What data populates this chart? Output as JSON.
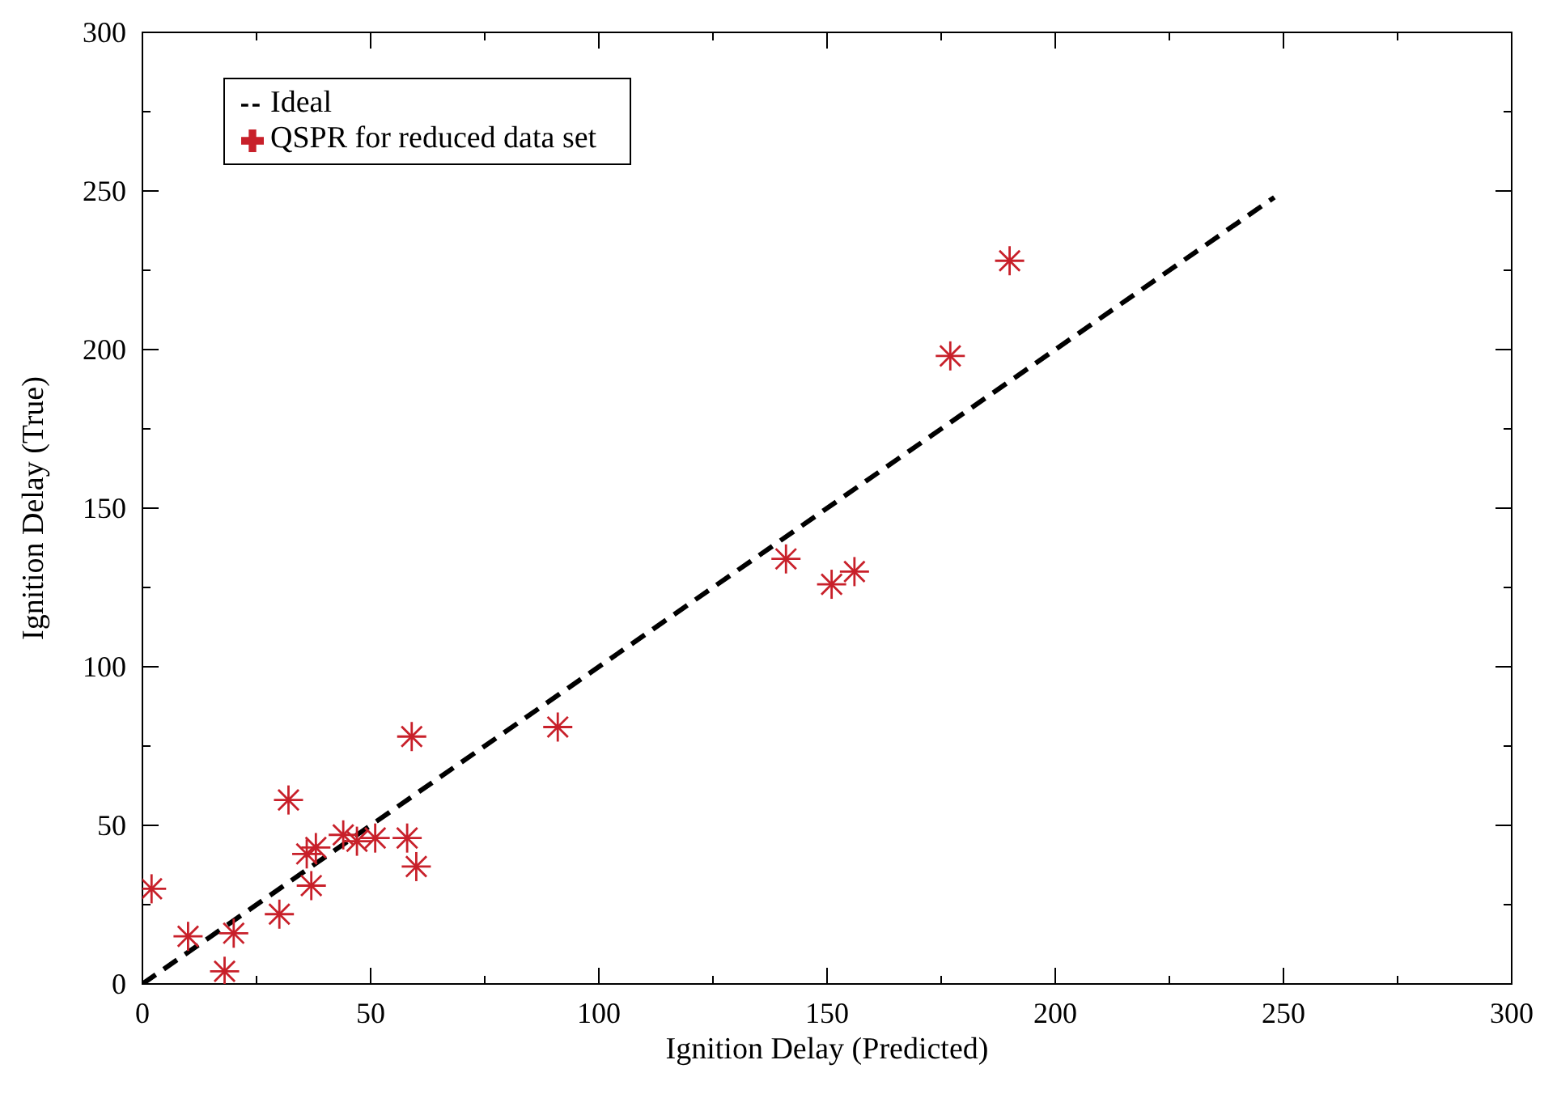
{
  "chart_data": {
    "type": "scatter",
    "xlabel": "Ignition Delay (Predicted)",
    "ylabel": "Ignition Delay (True)",
    "xlim": [
      0,
      300
    ],
    "ylim": [
      0,
      300
    ],
    "xticks": [
      0,
      {
        "value": 25,
        "label": null
      },
      50,
      {
        "value": 75,
        "label": null
      },
      100,
      {
        "value": 125,
        "label": null
      },
      150,
      {
        "value": 175,
        "label": null
      },
      200,
      {
        "value": 225,
        "label": null
      },
      250,
      {
        "value": 275,
        "label": null
      },
      300
    ],
    "yticks": [
      0,
      {
        "value": 25,
        "label": null
      },
      50,
      {
        "value": 75,
        "label": null
      },
      100,
      {
        "value": 125,
        "label": null
      },
      150,
      {
        "value": 175,
        "label": null
      },
      200,
      {
        "value": 225,
        "label": null
      },
      250,
      {
        "value": 275,
        "label": null
      },
      300
    ],
    "grid": false,
    "legend": "top left",
    "series": [
      {
        "name": "Ideal",
        "type": "line",
        "color": "#000000",
        "line_style": "dashed",
        "marker": "none",
        "x": [
          0,
          248
        ],
        "values": [
          0,
          248
        ]
      },
      {
        "name": "QSPR for reduced data set",
        "type": "scatter",
        "color": "#c8202a",
        "marker": "cross",
        "x": [
          2,
          10,
          18,
          20,
          30,
          32,
          36,
          37,
          38,
          44,
          47,
          51,
          58,
          60,
          59,
          91,
          141,
          151,
          156,
          177,
          190
        ],
        "values": [
          30,
          15,
          4,
          16,
          22,
          58,
          41,
          31,
          43,
          47,
          45,
          46,
          46,
          37,
          78,
          81,
          134,
          126,
          130,
          198,
          228
        ]
      }
    ]
  }
}
